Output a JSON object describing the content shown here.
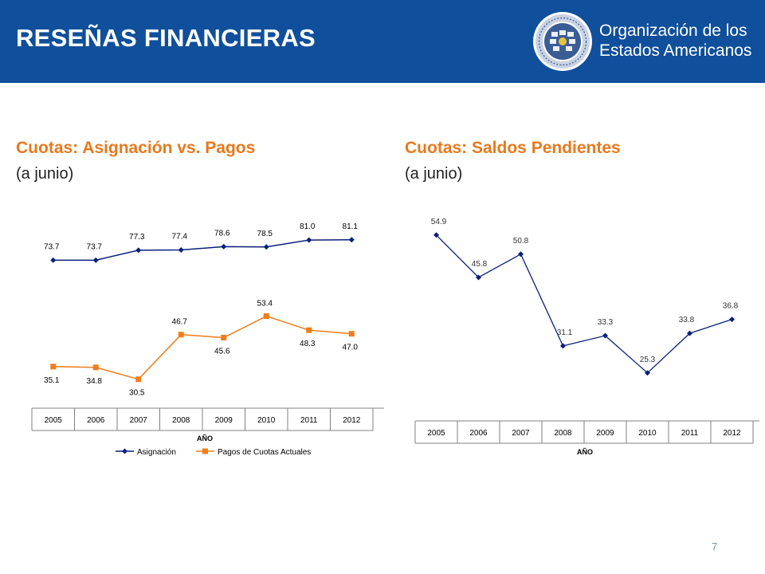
{
  "header": {
    "title": "RESEÑAS FINANCIERAS",
    "org_line1": "Organización de los",
    "org_line2": "Estados Americanos",
    "bg_color": "#0f4f9b"
  },
  "left_section": {
    "title": "Cuotas: Asignación vs. Pagos",
    "subtitle": "(a junio)"
  },
  "right_section": {
    "title": "Cuotas: Saldos Pendientes",
    "subtitle": "(a junio)"
  },
  "page_number": "7",
  "chart_data": [
    {
      "type": "line",
      "categories": [
        "2005",
        "2006",
        "2007",
        "2008",
        "2009",
        "2010",
        "2011",
        "2012"
      ],
      "xlabel": "AÑO",
      "ylim": [
        20,
        90
      ],
      "grid": false,
      "legend_position": "bottom",
      "series": [
        {
          "name": "Asignación",
          "values": [
            73.7,
            73.7,
            77.3,
            77.4,
            78.6,
            78.5,
            81.0,
            81.1
          ],
          "labels": [
            "73.7",
            "73.7",
            "77.3",
            "77.4",
            "78.6",
            "78.5",
            "81.0",
            "81.1"
          ],
          "color": "#0a1f7a",
          "marker": "diamond"
        },
        {
          "name": "Pagos de Cuotas Actuales",
          "values": [
            35.1,
            34.8,
            30.5,
            46.7,
            45.6,
            53.4,
            48.3,
            47.0
          ],
          "labels": [
            "35.1",
            "34.8",
            "30.5",
            "46.7",
            "45.6",
            "53.4",
            "48.3",
            "47.0"
          ],
          "color": "#f07d1a",
          "marker": "square"
        }
      ]
    },
    {
      "type": "line",
      "categories": [
        "2005",
        "2006",
        "2007",
        "2008",
        "2009",
        "2010",
        "2011",
        "2012"
      ],
      "xlabel": "AÑO",
      "ylim": [
        15,
        60
      ],
      "grid": false,
      "series": [
        {
          "values": [
            54.9,
            45.8,
            50.8,
            31.1,
            33.3,
            25.3,
            33.8,
            36.8
          ],
          "labels": [
            "54.9",
            "45.8",
            "50.8",
            "31.1",
            "33.3",
            "25.3",
            "33.8",
            "36.8"
          ],
          "color": "#0a1f7a",
          "marker": "diamond"
        }
      ]
    }
  ]
}
